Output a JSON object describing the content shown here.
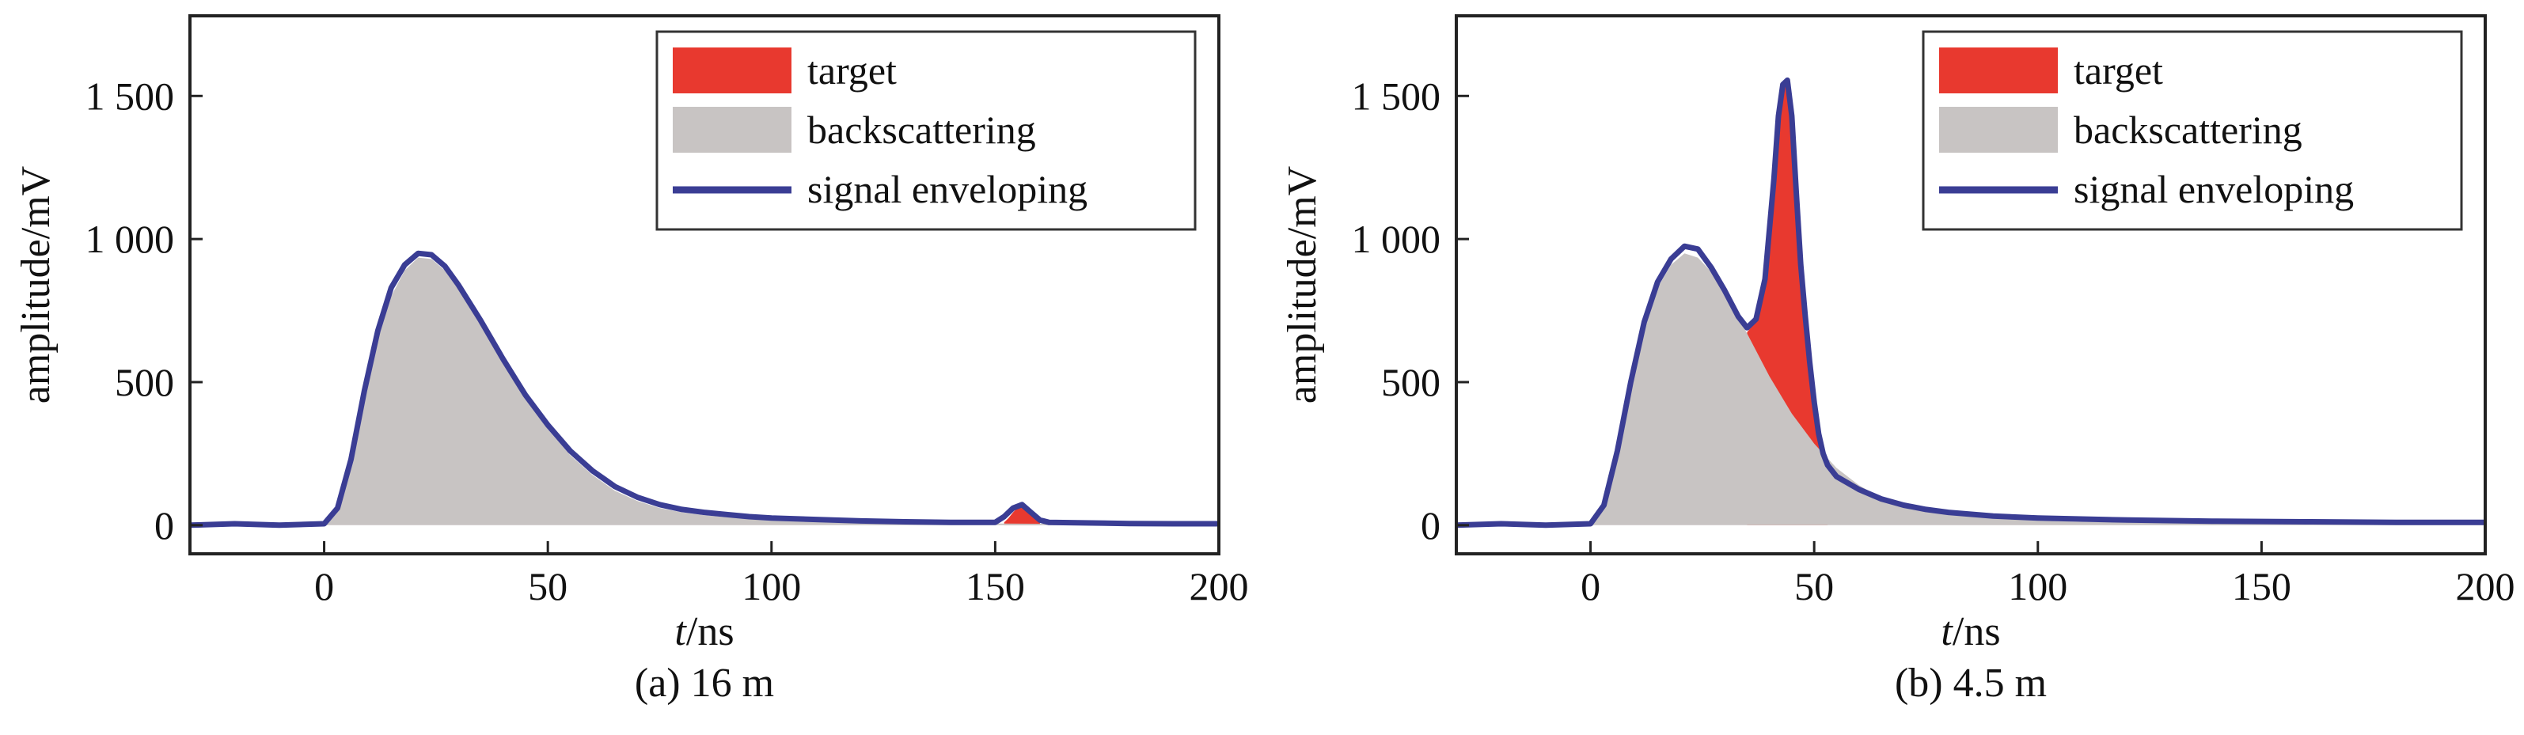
{
  "chart_data": [
    {
      "type": "area",
      "caption": "(a) 16 m",
      "xlabel_italic": "t",
      "xlabel_unit": "/ns",
      "ylabel": "amplitude/mV",
      "xlim": [
        -30,
        200
      ],
      "ylim": [
        -100,
        1780
      ],
      "xticks": [
        0,
        50,
        100,
        150,
        200
      ],
      "yticks": [
        0,
        500,
        1000,
        1500
      ],
      "ytick_labels": [
        "0",
        "500",
        "1 000",
        "1 500"
      ],
      "grid": false,
      "legend_position": "top-right",
      "colors": {
        "target": "#e8392f",
        "backscattering": "#c8c4c3",
        "envelope": "#3a3d94"
      },
      "series": [
        {
          "name": "target",
          "x": [
            152,
            153,
            154,
            155,
            156,
            157,
            158,
            159,
            160
          ],
          "y": [
            10,
            25,
            45,
            62,
            70,
            60,
            40,
            20,
            8
          ]
        },
        {
          "name": "backscattering",
          "x": [
            0,
            3,
            6,
            9,
            12,
            15,
            18,
            21,
            24,
            27,
            30,
            35,
            40,
            45,
            50,
            55,
            60,
            65,
            70,
            75,
            80,
            85,
            90,
            95,
            100,
            110,
            120,
            130,
            140,
            150,
            160,
            170,
            180,
            190,
            200
          ],
          "y": [
            0,
            50,
            210,
            440,
            650,
            800,
            890,
            935,
            930,
            890,
            825,
            700,
            565,
            440,
            335,
            245,
            175,
            120,
            85,
            60,
            45,
            35,
            28,
            22,
            18,
            14,
            11,
            9,
            8,
            6,
            5,
            5,
            4,
            4,
            3
          ]
        },
        {
          "name": "signal enveloping",
          "x": [
            -30,
            -20,
            -10,
            0,
            3,
            6,
            9,
            12,
            15,
            18,
            21,
            24,
            27,
            30,
            35,
            40,
            45,
            50,
            55,
            60,
            65,
            70,
            75,
            80,
            85,
            90,
            95,
            100,
            110,
            120,
            130,
            140,
            150,
            152,
            154,
            156,
            158,
            160,
            162,
            170,
            180,
            190,
            200
          ],
          "y": [
            0,
            5,
            0,
            5,
            60,
            230,
            470,
            680,
            830,
            910,
            950,
            945,
            905,
            840,
            715,
            580,
            455,
            350,
            260,
            190,
            135,
            98,
            72,
            55,
            45,
            37,
            30,
            25,
            20,
            15,
            12,
            10,
            10,
            30,
            60,
            72,
            45,
            18,
            10,
            8,
            6,
            5,
            5
          ]
        }
      ]
    },
    {
      "type": "area",
      "caption": "(b) 4.5 m",
      "xlabel_italic": "t",
      "xlabel_unit": "/ns",
      "ylabel": "amplitude/mV",
      "xlim": [
        -30,
        200
      ],
      "ylim": [
        -100,
        1780
      ],
      "xticks": [
        0,
        50,
        100,
        150,
        200
      ],
      "yticks": [
        0,
        500,
        1000,
        1500
      ],
      "ytick_labels": [
        "0",
        "500",
        "1 000",
        "1 500"
      ],
      "grid": false,
      "legend_position": "top-right",
      "colors": {
        "target": "#e8392f",
        "backscattering": "#c8c4c3",
        "envelope": "#3a3d94"
      },
      "series": [
        {
          "name": "target",
          "x": [
            35,
            37,
            39,
            41,
            42,
            43,
            44,
            45,
            46,
            47,
            48,
            49,
            50,
            51,
            52,
            53
          ],
          "y": [
            675,
            710,
            850,
            1200,
            1420,
            1540,
            1550,
            1420,
            1150,
            900,
            720,
            560,
            420,
            300,
            220,
            180
          ]
        },
        {
          "name": "backscattering",
          "x": [
            0,
            3,
            6,
            9,
            12,
            15,
            18,
            21,
            24,
            27,
            30,
            35,
            40,
            45,
            50,
            55,
            60,
            65,
            70,
            75,
            80,
            85,
            90,
            95,
            100,
            110,
            120,
            130,
            140,
            150,
            160,
            170,
            180,
            190,
            200
          ],
          "y": [
            0,
            60,
            250,
            480,
            690,
            830,
            910,
            950,
            935,
            885,
            815,
            670,
            520,
            390,
            285,
            200,
            140,
            95,
            68,
            50,
            38,
            30,
            24,
            20,
            16,
            12,
            10,
            8,
            7,
            6,
            5,
            5,
            4,
            4,
            3
          ]
        },
        {
          "name": "signal enveloping",
          "x": [
            -30,
            -20,
            -10,
            0,
            3,
            6,
            9,
            12,
            15,
            18,
            21,
            24,
            27,
            30,
            33,
            35,
            37,
            39,
            41,
            42,
            43,
            44,
            45,
            46,
            47,
            48,
            49,
            50,
            51,
            52,
            53,
            55,
            60,
            65,
            70,
            75,
            80,
            90,
            100,
            120,
            140,
            160,
            180,
            200
          ],
          "y": [
            0,
            5,
            0,
            5,
            70,
            260,
            500,
            710,
            850,
            930,
            975,
            965,
            900,
            820,
            730,
            690,
            720,
            860,
            1210,
            1430,
            1540,
            1555,
            1430,
            1160,
            910,
            730,
            570,
            430,
            320,
            250,
            210,
            170,
            125,
            92,
            70,
            55,
            45,
            32,
            25,
            18,
            14,
            12,
            10,
            10
          ]
        }
      ]
    }
  ]
}
